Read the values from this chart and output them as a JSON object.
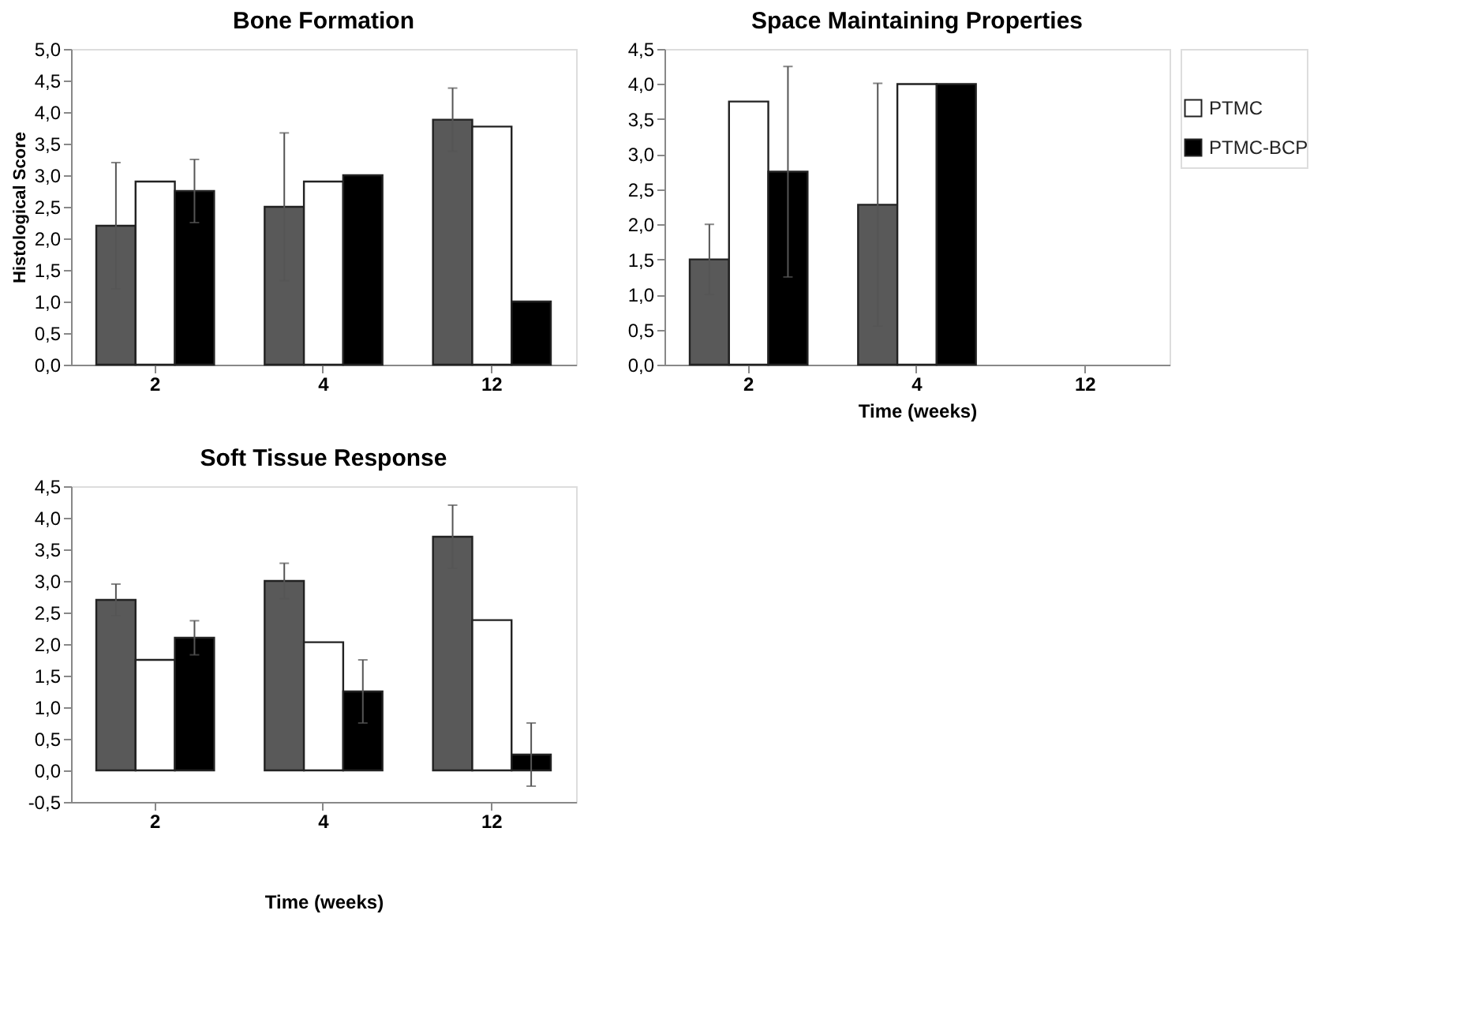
{
  "chart_data": [
    {
      "type": "bar",
      "title": "Bone Formation",
      "ylabel": "Histological Score",
      "categories": [
        "2",
        "4",
        "12"
      ],
      "ylim": [
        0,
        5
      ],
      "yticks": [
        {
          "value": 0,
          "label": "0,0"
        },
        {
          "value": 0.5,
          "label": "0,5"
        },
        {
          "value": 1,
          "label": "1,0"
        },
        {
          "value": 1.5,
          "label": "1,5"
        },
        {
          "value": 2,
          "label": "2,0"
        },
        {
          "value": 2.5,
          "label": "2,5"
        },
        {
          "value": 3,
          "label": "3,0"
        },
        {
          "value": 3.5,
          "label": "3,5"
        },
        {
          "value": 4,
          "label": "4,0"
        },
        {
          "value": 4.5,
          "label": "4,5"
        },
        {
          "value": 5,
          "label": "5,0"
        }
      ],
      "grid": false,
      "legend": false,
      "series": [
        {
          "color": "#595959",
          "values": [
            2.2,
            2.5,
            3.88
          ],
          "errors": [
            1.0,
            1.17,
            0.5
          ]
        },
        {
          "color": "#ffffff",
          "values": [
            2.9,
            2.9,
            3.77
          ]
        },
        {
          "color": "#000000",
          "values": [
            2.75,
            3.0,
            1.0
          ],
          "errors": [
            0.5,
            null,
            null
          ]
        }
      ]
    },
    {
      "type": "bar",
      "title": "Space Maintaining Properties",
      "xlabel": "Time (weeks)",
      "categories": [
        "2",
        "4",
        "12"
      ],
      "ylim": [
        0,
        4.5
      ],
      "yticks": [
        {
          "value": 0,
          "label": "0,0"
        },
        {
          "value": 0.5,
          "label": "0,5"
        },
        {
          "value": 1,
          "label": "1,0"
        },
        {
          "value": 1.5,
          "label": "1,5"
        },
        {
          "value": 2,
          "label": "2,0"
        },
        {
          "value": 2.5,
          "label": "2,5"
        },
        {
          "value": 3,
          "label": "3,0"
        },
        {
          "value": 3.5,
          "label": "3,5"
        },
        {
          "value": 4,
          "label": "4,0"
        },
        {
          "value": 4.5,
          "label": "4,5"
        }
      ],
      "grid": false,
      "legend": "right",
      "series": [
        {
          "color": "#595959",
          "values": [
            1.5,
            2.28,
            null
          ],
          "errors": [
            0.5,
            1.73,
            null
          ]
        },
        {
          "name": "PTMC",
          "color": "#ffffff",
          "values": [
            3.75,
            4.0,
            null
          ]
        },
        {
          "name": "PTMC-BCP",
          "color": "#000000",
          "values": [
            2.75,
            4.0,
            null
          ],
          "errors": [
            1.5,
            null,
            null
          ]
        }
      ]
    },
    {
      "type": "bar",
      "title": "Soft Tissue Response",
      "xlabel": "Time (weeks)",
      "categories": [
        "2",
        "4",
        "12"
      ],
      "ylim": [
        -0.5,
        4.5
      ],
      "yticks": [
        {
          "value": -0.5,
          "label": "-0,5"
        },
        {
          "value": 0,
          "label": "0,0"
        },
        {
          "value": 0.5,
          "label": "0,5"
        },
        {
          "value": 1,
          "label": "1,0"
        },
        {
          "value": 1.5,
          "label": "1,5"
        },
        {
          "value": 2,
          "label": "2,0"
        },
        {
          "value": 2.5,
          "label": "2,5"
        },
        {
          "value": 3,
          "label": "3,0"
        },
        {
          "value": 3.5,
          "label": "3,5"
        },
        {
          "value": 4,
          "label": "4,0"
        },
        {
          "value": 4.5,
          "label": "4,5"
        }
      ],
      "grid": false,
      "legend": false,
      "series": [
        {
          "color": "#595959",
          "values": [
            2.7,
            3.0,
            3.7
          ],
          "errors": [
            0.25,
            0.28,
            0.5
          ]
        },
        {
          "color": "#ffffff",
          "values": [
            1.75,
            2.03,
            2.38
          ]
        },
        {
          "color": "#000000",
          "values": [
            2.1,
            1.25,
            0.25
          ],
          "errors": [
            0.27,
            0.5,
            0.5
          ]
        }
      ]
    }
  ]
}
